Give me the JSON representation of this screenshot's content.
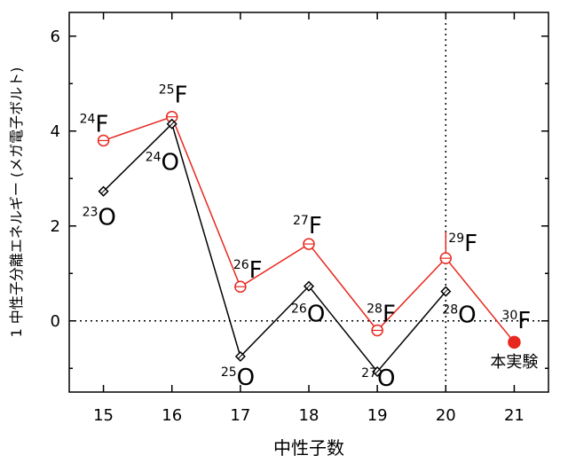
{
  "chart_data": {
    "type": "line",
    "xlabel": "中性子数",
    "ylabel": "1 中性子分離エネルギー (メガ電子ボルト)",
    "x": [
      15,
      16,
      17,
      18,
      19,
      20,
      21
    ],
    "xlim": [
      14.5,
      21.5
    ],
    "ylim": [
      -1.5,
      6.5
    ],
    "yticks": [
      0,
      2,
      4,
      6
    ],
    "reference_lines": {
      "y": 0,
      "x": 20
    },
    "grid": false,
    "colors": {
      "F": "#e8281e",
      "O": "#000000"
    },
    "series": [
      {
        "key": "F",
        "marker": "circle",
        "points": [
          {
            "x": 15,
            "y": 3.8,
            "label_sup": "24",
            "label_el": "F"
          },
          {
            "x": 16,
            "y": 4.3,
            "label_sup": "25",
            "label_el": "F"
          },
          {
            "x": 17,
            "y": 0.72,
            "label_sup": "26",
            "label_el": "F"
          },
          {
            "x": 18,
            "y": 1.62,
            "label_sup": "27",
            "label_el": "F"
          },
          {
            "x": 19,
            "y": -0.2,
            "label_sup": "28",
            "label_el": "F"
          },
          {
            "x": 20,
            "y": 1.32,
            "label_sup": "29",
            "label_el": "F",
            "err_up": 0.55
          },
          {
            "x": 21,
            "y": -0.45,
            "label_sup": "30",
            "label_el": "F",
            "filled": true,
            "note": "本実験"
          }
        ]
      },
      {
        "key": "O",
        "marker": "diamond",
        "points": [
          {
            "x": 15,
            "y": 2.73,
            "label_sup": "23",
            "label_el": "O"
          },
          {
            "x": 16,
            "y": 4.15,
            "label_sup": "24",
            "label_el": "O"
          },
          {
            "x": 17,
            "y": -0.75,
            "label_sup": "25",
            "label_el": "O"
          },
          {
            "x": 18,
            "y": 0.73,
            "label_sup": "26",
            "label_el": "O"
          },
          {
            "x": 19,
            "y": -1.07,
            "label_sup": "27",
            "label_el": "O"
          },
          {
            "x": 20,
            "y": 0.62,
            "label_sup": "28",
            "label_el": "O"
          }
        ]
      }
    ]
  }
}
